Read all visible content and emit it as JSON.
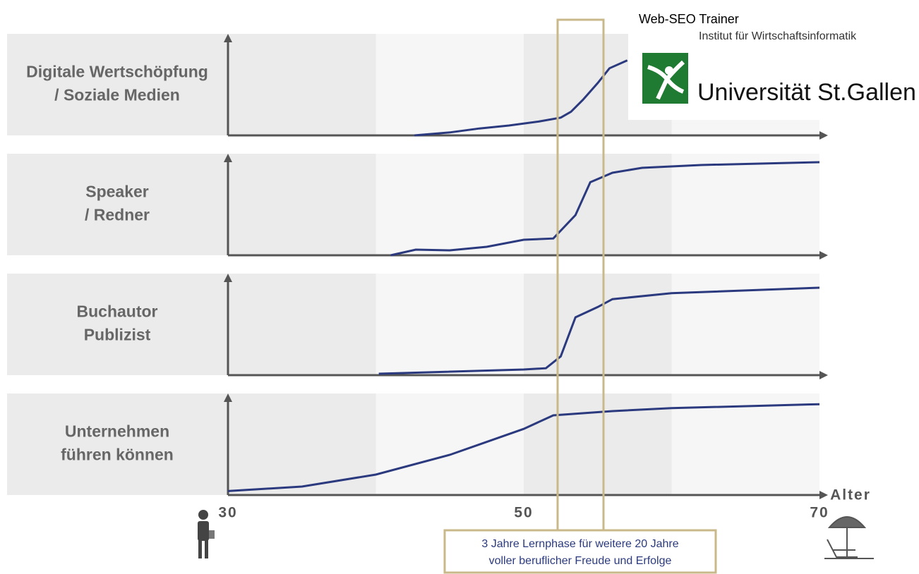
{
  "chart_data": [
    {
      "type": "line",
      "title": [
        "Digitale Wertschöpfung",
        "/ Soziale Medien"
      ],
      "color": "#2b3a7e",
      "x": [
        42.6,
        45,
        47,
        49,
        51,
        52.5,
        53.2,
        54,
        55,
        55.8,
        57
      ],
      "values": [
        0,
        3,
        7,
        10,
        14,
        18,
        24,
        36,
        53,
        68,
        76
      ],
      "xlim": [
        30,
        70
      ],
      "ylim": [
        0,
        100
      ]
    },
    {
      "type": "line",
      "title": [
        "Speaker",
        "/ Redner"
      ],
      "color": "#2b3a7e",
      "x": [
        41,
        42.7,
        45,
        47.5,
        50,
        52,
        53.5,
        54.5,
        56,
        58,
        62,
        70
      ],
      "values": [
        0,
        5.7,
        5,
        8.6,
        15.7,
        17,
        40.7,
        74,
        83.6,
        88.6,
        91.4,
        94.3
      ],
      "xlim": [
        30,
        70
      ],
      "ylim": [
        0,
        100
      ]
    },
    {
      "type": "line",
      "title": [
        "Buchautor",
        "Publizist"
      ],
      "color": "#2b3a7e",
      "x": [
        40.2,
        50,
        51.5,
        52.5,
        53.5,
        55,
        56,
        60,
        70
      ],
      "values": [
        1.4,
        5.7,
        7,
        19,
        58.6,
        69,
        77,
        83,
        88.6
      ],
      "xlim": [
        30,
        70
      ],
      "ylim": [
        0,
        100
      ]
    },
    {
      "type": "line",
      "title": [
        "Unternehmen",
        "führen können"
      ],
      "color": "#2b3a7e",
      "x": [
        30,
        35,
        40,
        45,
        50,
        52,
        56,
        60,
        70
      ],
      "values": [
        4,
        8.6,
        20.7,
        40.7,
        67,
        80.7,
        85,
        88,
        92
      ],
      "xlim": [
        30,
        70
      ],
      "ylim": [
        0,
        100
      ],
      "xticks": [
        30,
        50,
        70
      ],
      "xlabel": "Alter"
    }
  ],
  "annotation": [
    "3 Jahre Lernphase für weitere 20 Jahre",
    "voller beruflicher Freude und Erfolge"
  ],
  "logo": {
    "title": "Web-SEO Trainer",
    "institute": "Institut für Wirtschaftsinformatik",
    "university": "Universität St.Gallen"
  }
}
